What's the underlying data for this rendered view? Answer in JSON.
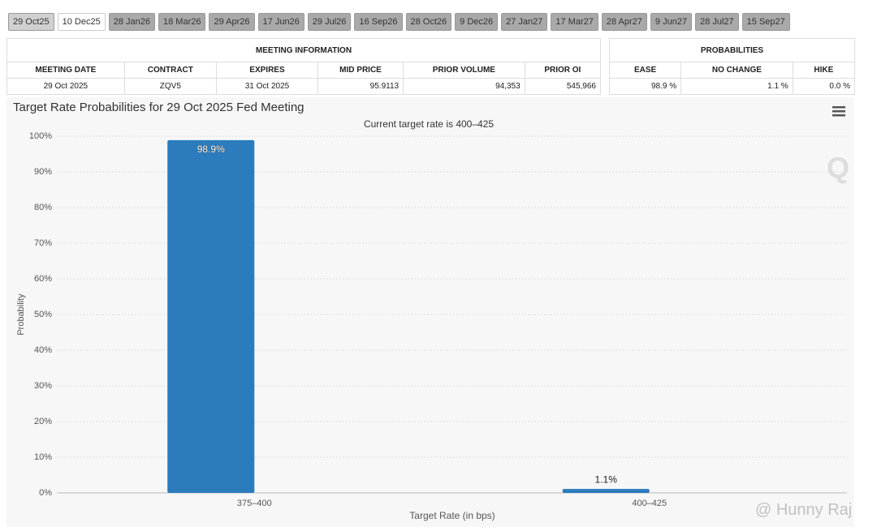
{
  "tabs": [
    "29 Oct25",
    "10 Dec25",
    "28 Jan26",
    "18 Mar26",
    "29 Apr26",
    "17 Jun26",
    "29 Jul26",
    "16 Sep26",
    "28 Oct26",
    "9 Dec26",
    "27 Jan27",
    "17 Mar27",
    "28 Apr27",
    "9 Jun27",
    "28 Jul27",
    "15 Sep27"
  ],
  "meeting_table": {
    "title": "MEETING INFORMATION",
    "headers": [
      "MEETING DATE",
      "CONTRACT",
      "EXPIRES",
      "MID PRICE",
      "PRIOR VOLUME",
      "PRIOR OI"
    ],
    "row": [
      "29 Oct 2025",
      "ZQV5",
      "31 Oct 2025",
      "95.9113",
      "94,353",
      "545,966"
    ]
  },
  "probability_table": {
    "title": "PROBABILITIES",
    "headers": [
      "EASE",
      "NO CHANGE",
      "HIKE"
    ],
    "row": [
      "98.9 %",
      "1.1 %",
      "0.0 %"
    ]
  },
  "chart_data": {
    "type": "bar",
    "title": "Target Rate Probabilities for 29 Oct 2025 Fed Meeting",
    "subtitle": "Current target rate is 400–425",
    "categories": [
      "375–400",
      "400–425"
    ],
    "values": [
      98.9,
      1.1
    ],
    "value_labels": [
      "98.9%",
      "1.1%"
    ],
    "color": "#2b7bbd",
    "x_label": "Target Rate (in bps)",
    "y_label": "Probability",
    "ylim": [
      0,
      100
    ],
    "yticks": [
      {
        "value": 0,
        "label": "0%"
      },
      {
        "value": 10,
        "label": "10%"
      },
      {
        "value": 20,
        "label": "20%"
      },
      {
        "value": 30,
        "label": "30%"
      },
      {
        "value": 40,
        "label": "40%"
      },
      {
        "value": 50,
        "label": "50%"
      },
      {
        "value": 60,
        "label": "60%"
      },
      {
        "value": 70,
        "label": "70%"
      },
      {
        "value": 80,
        "label": "80%"
      },
      {
        "value": 90,
        "label": "90%"
      },
      {
        "value": 100,
        "label": "100%"
      }
    ],
    "grid": true
  },
  "watermark": "@ Hunny Raj"
}
